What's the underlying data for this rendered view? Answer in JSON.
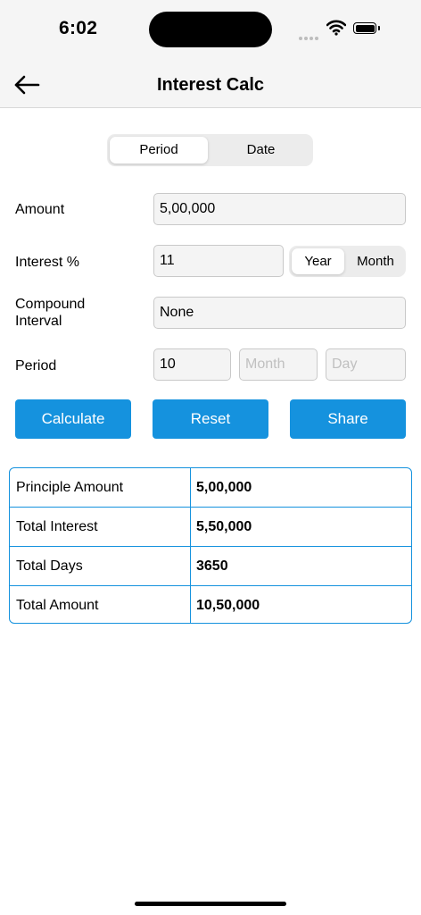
{
  "status": {
    "time": "6:02"
  },
  "header": {
    "title": "Interest Calc"
  },
  "mode_tabs": [
    {
      "label": "Period",
      "active": true
    },
    {
      "label": "Date",
      "active": false
    }
  ],
  "form": {
    "amount": {
      "label": "Amount",
      "value": "5,00,000"
    },
    "interest": {
      "label": "Interest %",
      "value": "11",
      "unit_options": [
        {
          "label": "Year",
          "active": true
        },
        {
          "label": "Month",
          "active": false
        }
      ]
    },
    "compound": {
      "label": "Compound Interval",
      "value": "None"
    },
    "period": {
      "label": "Period",
      "years": "10",
      "month_placeholder": "Month",
      "day_placeholder": "Day"
    }
  },
  "actions": {
    "calculate": "Calculate",
    "reset": "Reset",
    "share": "Share"
  },
  "results": [
    {
      "label": "Principle Amount",
      "value": "5,00,000"
    },
    {
      "label": "Total Interest",
      "value": "5,50,000"
    },
    {
      "label": "Total Days",
      "value": "3650"
    },
    {
      "label": "Total Amount",
      "value": "10,50,000"
    }
  ],
  "colors": {
    "accent": "#1592de",
    "bar_bg": "#f5f5f5"
  }
}
